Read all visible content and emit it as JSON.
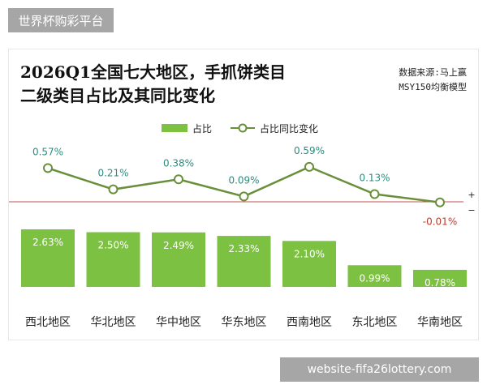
{
  "site_tag": "世界杯购彩平台",
  "footer_tag": "website-fifa26lottery.com",
  "header": {
    "title_line1": "2026Q1全国七大地区，手抓饼类目",
    "title_line2": "二级类目占比及其同比变化",
    "source_line1": "数据来源:马上赢",
    "source_line2": "MSY150均衡模型"
  },
  "colors": {
    "bar": "#7dc142",
    "line": "#6a8f3a",
    "baseline": "#c0504d",
    "positive_label": "#2e8b7e",
    "negative_label": "#c0392b"
  },
  "sign_markers": {
    "plus": "+",
    "minus": "−"
  },
  "chart_data": {
    "type": "bar",
    "categories": [
      "西北地区",
      "华北地区",
      "华中地区",
      "华东地区",
      "西南地区",
      "东北地区",
      "华南地区"
    ],
    "series": [
      {
        "name": "占比",
        "type": "bar",
        "values": [
          2.63,
          2.5,
          2.49,
          2.33,
          2.1,
          0.99,
          0.78
        ],
        "labels": [
          "2.63%",
          "2.50%",
          "2.49%",
          "2.33%",
          "2.10%",
          "0.99%",
          "0.78%"
        ]
      },
      {
        "name": "占比同比变化",
        "type": "line",
        "values": [
          0.57,
          0.21,
          0.38,
          0.09,
          0.59,
          0.13,
          -0.01
        ],
        "labels": [
          "0.57%",
          "0.21%",
          "0.38%",
          "0.09%",
          "0.59%",
          "0.13%",
          "-0.01%"
        ]
      }
    ],
    "legend": "top-center",
    "grid": false
  }
}
